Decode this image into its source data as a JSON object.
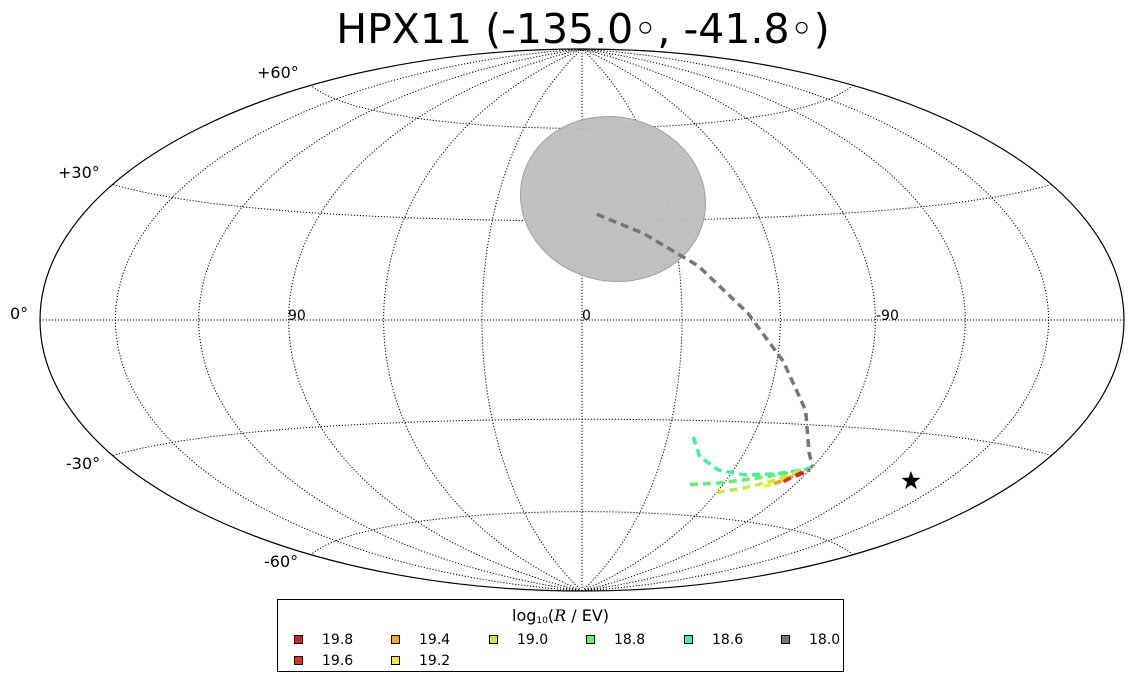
{
  "title": "HPX11 (-135.0◦, -41.8◦)",
  "map": {
    "projection": "hammer-aitoff",
    "graticule_lat_lines": [
      -60,
      -30,
      0,
      30,
      60
    ],
    "graticule_lon_spacing_deg": 30,
    "lat_labels": [
      "+60°",
      "+30°",
      "0°",
      "-30°",
      "-60°"
    ],
    "lon_labels": [
      "90",
      "0",
      "-90"
    ],
    "source_region": {
      "label": "",
      "color": "#bdbdbd",
      "edge_color": "#9e9e9e"
    },
    "source_marker": {
      "symbol": "star",
      "color": "#000000"
    },
    "tracks": [
      {
        "name": "18.0",
        "color": "#777777",
        "points": [
          [
            -5,
            32
          ],
          [
            -20,
            26
          ],
          [
            -36,
            16
          ],
          [
            -50,
            2
          ],
          [
            -62,
            -12
          ],
          [
            -74,
            -26
          ],
          [
            -84,
            -38
          ],
          [
            -90,
            -42
          ]
        ]
      },
      {
        "name": "18.6",
        "color": "#3ff2a0",
        "points": [
          [
            -39,
            -35
          ],
          [
            -44,
            -41
          ],
          [
            -54,
            -45
          ],
          [
            -66,
            -46
          ],
          [
            -78,
            -45
          ],
          [
            -88,
            -43
          ],
          [
            -90,
            -42
          ]
        ]
      },
      {
        "name": "18.8",
        "color": "#5af56c",
        "points": [
          [
            -46,
            -50
          ],
          [
            -58,
            -49
          ],
          [
            -70,
            -47
          ],
          [
            -80,
            -45
          ],
          [
            -88,
            -43
          ]
        ]
      },
      {
        "name": "19.0",
        "color": "#bef040",
        "points": [
          [
            -60,
            -52
          ],
          [
            -70,
            -50
          ],
          [
            -80,
            -47
          ],
          [
            -88,
            -43
          ]
        ]
      },
      {
        "name": "19.2",
        "color": "#f0f034",
        "points": [
          [
            -78,
            -49
          ],
          [
            -85,
            -46
          ]
        ]
      },
      {
        "name": "19.4",
        "color": "#f5a623",
        "points": [
          [
            -81,
            -48
          ],
          [
            -88,
            -44
          ]
        ]
      },
      {
        "name": "19.6",
        "color": "#e0301e",
        "points": [
          [
            -84,
            -47
          ],
          [
            -89,
            -43
          ]
        ]
      },
      {
        "name": "19.8",
        "color": "#d42020",
        "points": [
          [
            -87,
            -45
          ],
          [
            -90,
            -43
          ]
        ]
      }
    ]
  },
  "legend": {
    "title_prefix": "log",
    "title_sub": "10",
    "title_open": "(",
    "title_var": "R",
    "title_rest": " / EV)",
    "items": [
      {
        "label": "19.8",
        "color": "#d42020"
      },
      {
        "label": "19.6",
        "color": "#e0301e"
      },
      {
        "label": "19.4",
        "color": "#f5a623"
      },
      {
        "label": "19.2",
        "color": "#f0f034"
      },
      {
        "label": "19.0",
        "color": "#bef040"
      },
      {
        "label": "18.8",
        "color": "#5af56c"
      },
      {
        "label": "18.6",
        "color": "#3ff2a0"
      },
      {
        "label": "18.0",
        "color": "#777777"
      }
    ]
  }
}
